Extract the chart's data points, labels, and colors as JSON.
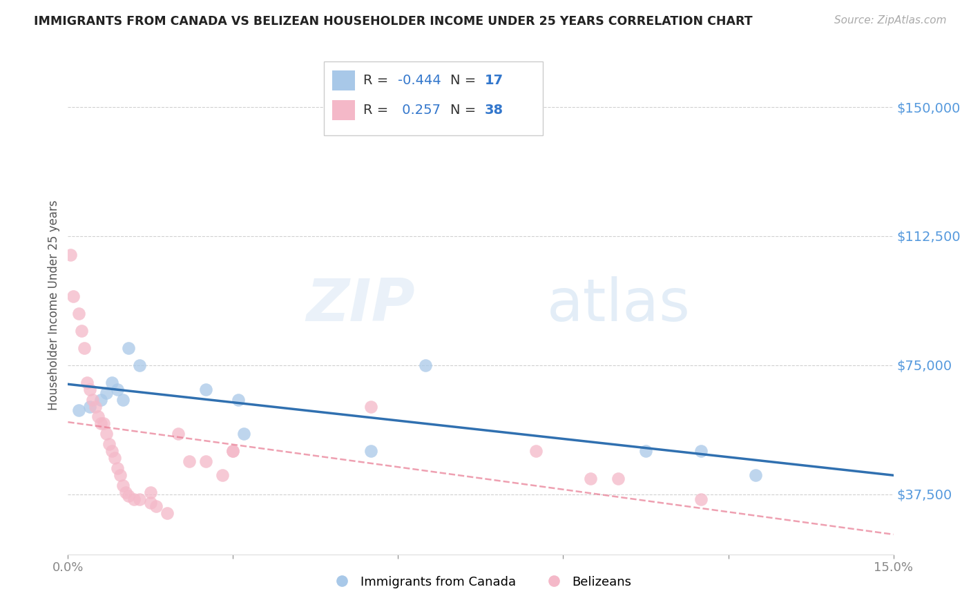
{
  "title": "IMMIGRANTS FROM CANADA VS BELIZEAN HOUSEHOLDER INCOME UNDER 25 YEARS CORRELATION CHART",
  "source": "Source: ZipAtlas.com",
  "ylabel": "Householder Income Under 25 years",
  "legend_label1": "Immigrants from Canada",
  "legend_label2": "Belizeans",
  "R1": -0.444,
  "N1": 17,
  "R2": 0.257,
  "N2": 38,
  "color_blue": "#a8c8e8",
  "color_pink": "#f4b8c8",
  "color_blue_line": "#3070b0",
  "color_pink_line": "#e87890",
  "color_ytick": "#5599dd",
  "xlim": [
    0.0,
    15.0
  ],
  "ylim": [
    20000,
    165000
  ],
  "yticks": [
    37500,
    75000,
    112500,
    150000
  ],
  "ytick_labels": [
    "$37,500",
    "$75,000",
    "$112,500",
    "$150,000"
  ],
  "xticks": [
    0.0,
    3.0,
    6.0,
    9.0,
    12.0,
    15.0
  ],
  "canada_x": [
    0.2,
    0.4,
    0.6,
    0.7,
    0.8,
    0.9,
    1.0,
    1.1,
    1.3,
    2.5,
    3.1,
    3.2,
    5.5,
    6.5,
    10.5,
    11.5,
    12.5
  ],
  "canada_y": [
    62000,
    63000,
    65000,
    67000,
    70000,
    68000,
    65000,
    80000,
    75000,
    68000,
    65000,
    55000,
    50000,
    75000,
    50000,
    50000,
    43000
  ],
  "belize_x": [
    0.05,
    0.1,
    0.2,
    0.25,
    0.3,
    0.35,
    0.4,
    0.45,
    0.5,
    0.55,
    0.6,
    0.65,
    0.7,
    0.75,
    0.8,
    0.85,
    0.9,
    0.95,
    1.0,
    1.05,
    1.1,
    1.2,
    1.3,
    1.5,
    1.5,
    1.6,
    1.8,
    2.0,
    2.2,
    2.5,
    2.8,
    3.0,
    3.0,
    5.5,
    8.5,
    9.5,
    10.0,
    11.5
  ],
  "belize_y": [
    107000,
    95000,
    90000,
    85000,
    80000,
    70000,
    68000,
    65000,
    63000,
    60000,
    58000,
    58000,
    55000,
    52000,
    50000,
    48000,
    45000,
    43000,
    40000,
    38000,
    37000,
    36000,
    36000,
    38000,
    35000,
    34000,
    32000,
    55000,
    47000,
    47000,
    43000,
    50000,
    50000,
    63000,
    50000,
    42000,
    42000,
    36000
  ],
  "watermark_zip": "ZIP",
  "watermark_atlas": "atlas",
  "background_color": "#ffffff"
}
